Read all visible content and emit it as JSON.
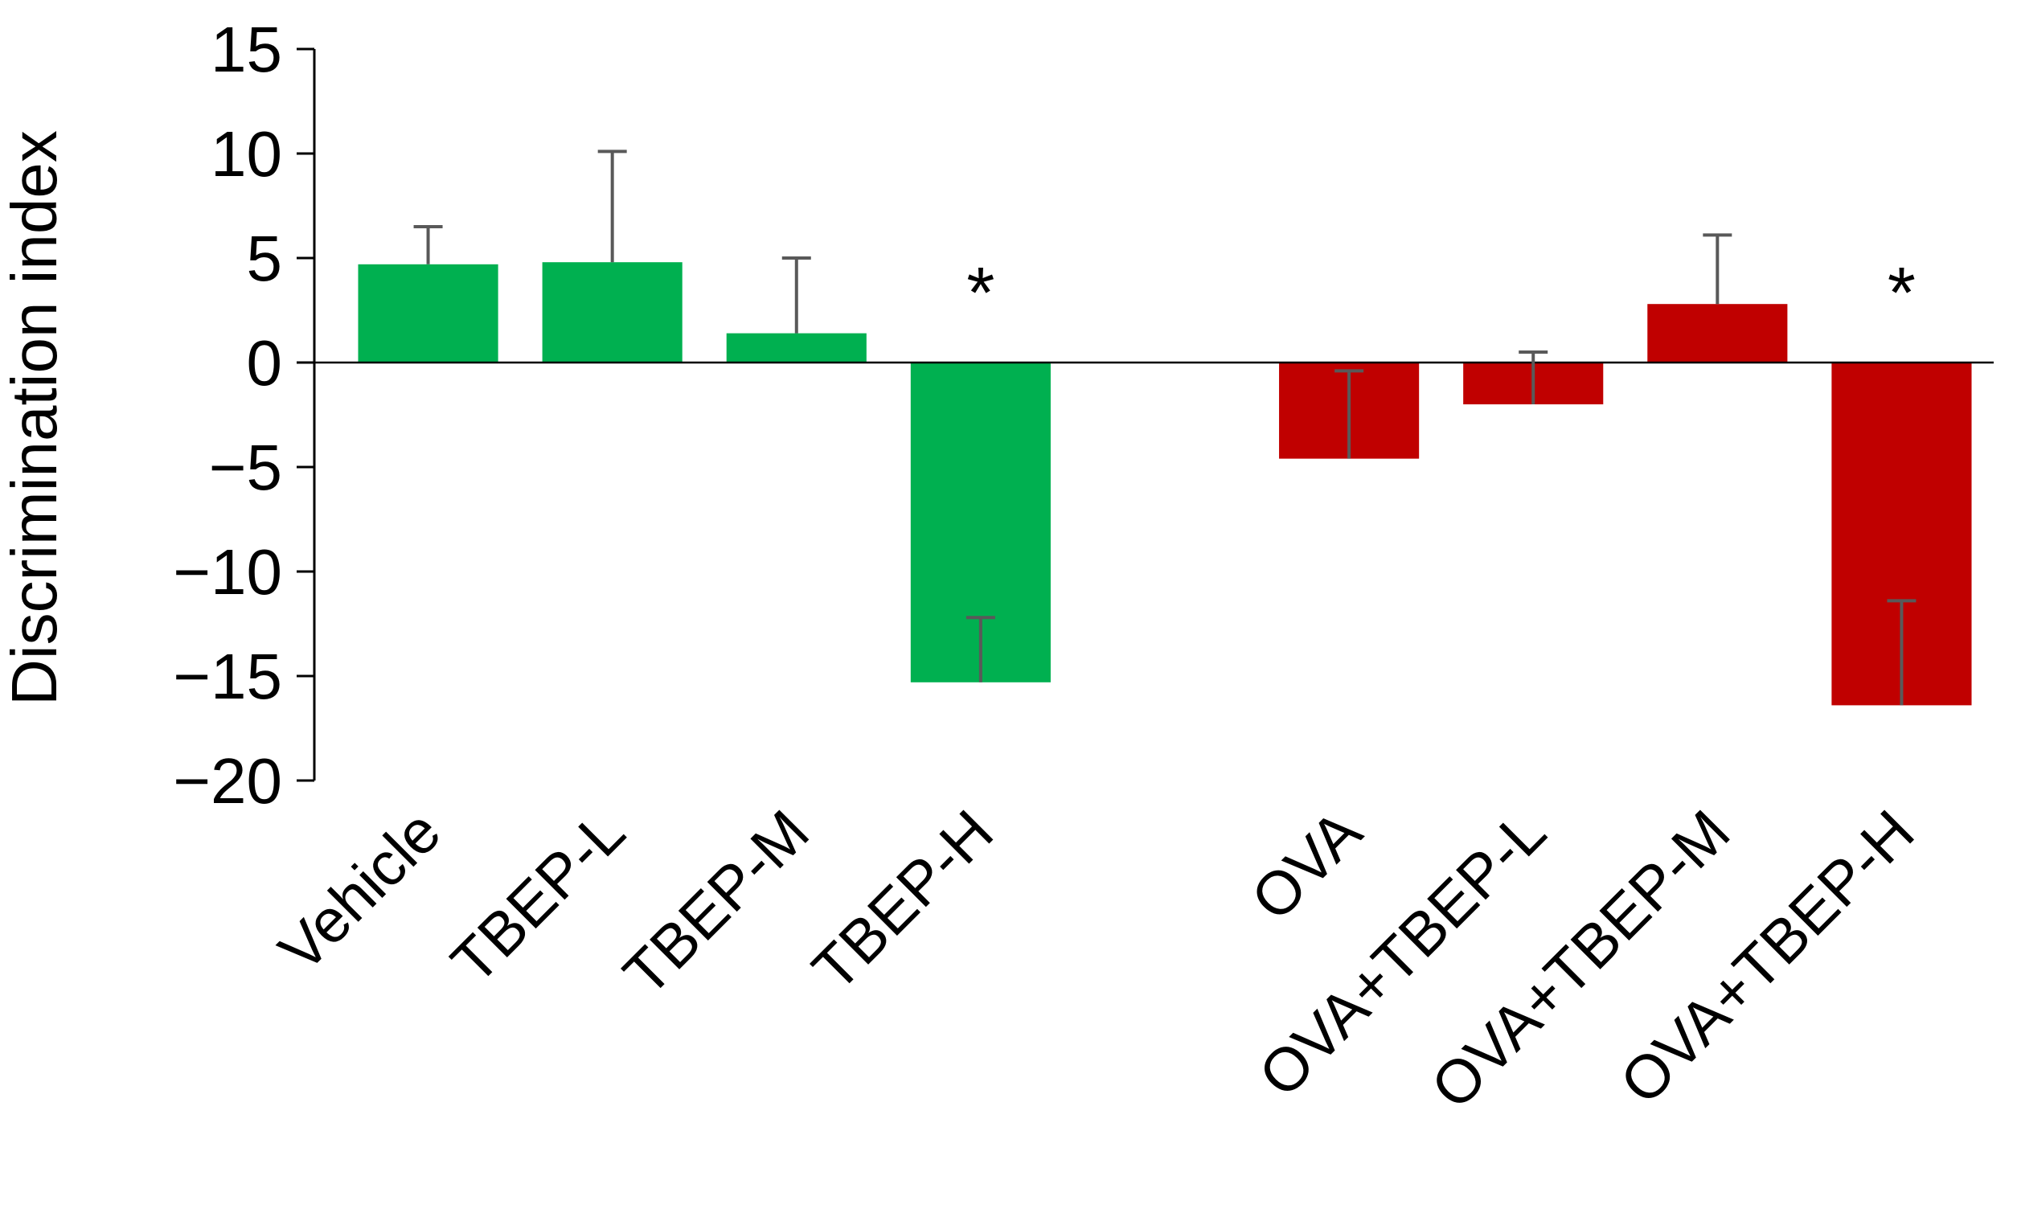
{
  "chart_data": {
    "type": "bar",
    "y_label": "Discrimination index",
    "categories": [
      "Vehicle",
      "TBEP-L",
      "TBEP-M",
      "TBEP-H",
      null,
      "OVA",
      "OVA+TBEP-L",
      "OVA+TBEP-M",
      "OVA+TBEP-H"
    ],
    "values": [
      4.7,
      4.8,
      1.4,
      -15.3,
      null,
      -4.6,
      -2.0,
      2.8,
      -16.4
    ],
    "errors": [
      1.8,
      5.3,
      3.6,
      3.1,
      null,
      4.2,
      2.5,
      3.3,
      5.0
    ],
    "colors": [
      "#00b050",
      "#00b050",
      "#00b050",
      "#00b050",
      null,
      "#c00000",
      "#c00000",
      "#c00000",
      "#c00000"
    ],
    "annotations": [
      {
        "text": "*",
        "at": "TBEP-H"
      },
      {
        "text": "*",
        "at": "OVA+TBEP-H"
      }
    ],
    "ylim": [
      -20,
      15
    ],
    "yticks": [
      {
        "value": -20,
        "label": "−20"
      },
      {
        "value": -15,
        "label": "−15"
      },
      {
        "value": -10,
        "label": "−10"
      },
      {
        "value": -5,
        "label": "−5"
      },
      0,
      5,
      10,
      15
    ],
    "grid": false
  }
}
